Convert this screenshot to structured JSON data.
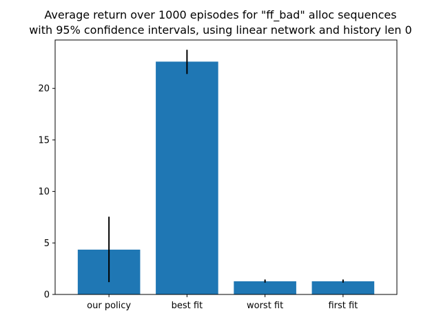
{
  "chart_data": {
    "type": "bar",
    "title_line1": "Average return over 1000 episodes for \"ff_bad\" alloc sequences",
    "title_line2": "with 95% confidence intervals, using linear network and history len 0",
    "categories": [
      "our policy",
      "best fit",
      "worst fit",
      "first fit"
    ],
    "values": [
      4.35,
      22.6,
      1.28,
      1.28
    ],
    "error_low": [
      1.2,
      21.4,
      1.15,
      1.15
    ],
    "error_high": [
      7.55,
      23.75,
      1.45,
      1.45
    ],
    "ylim": [
      0,
      24.7
    ],
    "yticks": [
      0,
      5,
      10,
      15,
      20
    ],
    "xlabel": "",
    "ylabel": "",
    "grid": false,
    "bar_color": "#1f77b4",
    "error_color": "#000000"
  }
}
